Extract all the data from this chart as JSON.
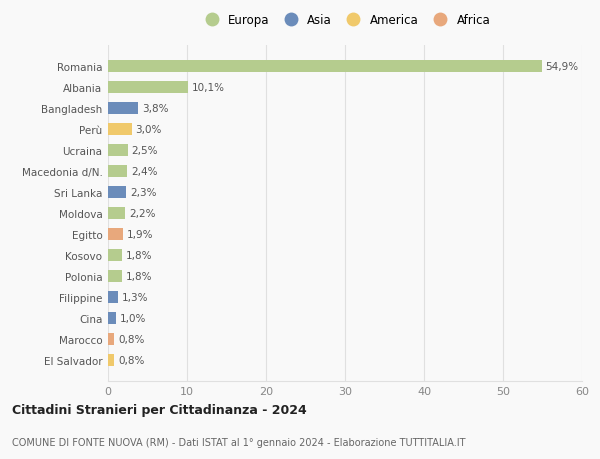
{
  "countries": [
    "Romania",
    "Albania",
    "Bangladesh",
    "Perù",
    "Ucraina",
    "Macedonia d/N.",
    "Sri Lanka",
    "Moldova",
    "Egitto",
    "Kosovo",
    "Polonia",
    "Filippine",
    "Cina",
    "Marocco",
    "El Salvador"
  ],
  "values": [
    54.9,
    10.1,
    3.8,
    3.0,
    2.5,
    2.4,
    2.3,
    2.2,
    1.9,
    1.8,
    1.8,
    1.3,
    1.0,
    0.8,
    0.8
  ],
  "labels": [
    "54,9%",
    "10,1%",
    "3,8%",
    "3,0%",
    "2,5%",
    "2,4%",
    "2,3%",
    "2,2%",
    "1,9%",
    "1,8%",
    "1,8%",
    "1,3%",
    "1,0%",
    "0,8%",
    "0,8%"
  ],
  "continents": [
    "Europa",
    "Europa",
    "Asia",
    "America",
    "Europa",
    "Europa",
    "Asia",
    "Europa",
    "Africa",
    "Europa",
    "Europa",
    "Asia",
    "Asia",
    "Africa",
    "America"
  ],
  "colors": {
    "Europa": "#b5cc8e",
    "Asia": "#6b8cba",
    "America": "#f0c96b",
    "Africa": "#e8a87c"
  },
  "legend_order": [
    "Europa",
    "Asia",
    "America",
    "Africa"
  ],
  "xlim": [
    0,
    60
  ],
  "xticks": [
    0,
    10,
    20,
    30,
    40,
    50,
    60
  ],
  "title": "Cittadini Stranieri per Cittadinanza - 2024",
  "subtitle": "COMUNE DI FONTE NUOVA (RM) - Dati ISTAT al 1° gennaio 2024 - Elaborazione TUTTITALIA.IT",
  "bg_color": "#f9f9f9",
  "grid_color": "#e0e0e0"
}
